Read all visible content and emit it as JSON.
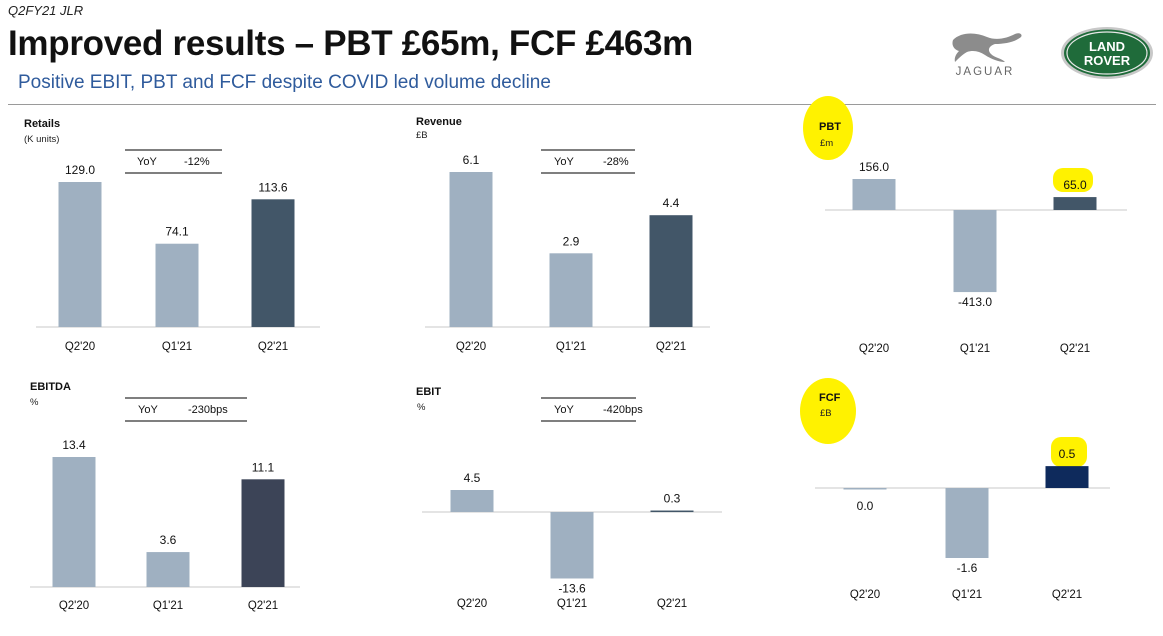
{
  "header": {
    "doc_tag": "Q2FY21 JLR",
    "title": "Improved results – PBT £65m, FCF £463m",
    "subtitle": "Positive EBIT, PBT and FCF despite COVID led volume decline",
    "jaguar_logo_text": "JAGUAR",
    "landrover_logo_text": [
      "LAND",
      "ROVER"
    ]
  },
  "colors": {
    "bar_light": "#9fb0c1",
    "bar_dark": "#425668",
    "bar_dark_ebitda": "#3c4457",
    "bar_navy": "#0e2a5c",
    "highlight": "#fff200",
    "subtitle": "#2f5b9c"
  },
  "chart_data": [
    {
      "id": "retails",
      "type": "bar",
      "title": "Retails",
      "unit": "(K units)",
      "categories": [
        "Q2'20",
        "Q1'21",
        "Q2'21"
      ],
      "values": [
        129.0,
        74.1,
        113.6
      ],
      "labels": [
        "129.0",
        "74.1",
        "113.6"
      ],
      "yoy": {
        "label": "YoY",
        "value": "-12%"
      },
      "bar_colors": [
        "#9fb0c1",
        "#9fb0c1",
        "#425668"
      ],
      "ylim": [
        0,
        129
      ]
    },
    {
      "id": "revenue",
      "type": "bar",
      "title": "Revenue",
      "unit": "£B",
      "categories": [
        "Q2'20",
        "Q1'21",
        "Q2'21"
      ],
      "values": [
        6.1,
        2.9,
        4.4
      ],
      "labels": [
        "6.1",
        "2.9",
        "4.4"
      ],
      "yoy": {
        "label": "YoY",
        "value": "-28%"
      },
      "bar_colors": [
        "#9fb0c1",
        "#9fb0c1",
        "#425668"
      ],
      "ylim": [
        0,
        6.1
      ]
    },
    {
      "id": "pbt",
      "type": "bar",
      "title": "PBT",
      "unit": "£m",
      "categories": [
        "Q2'20",
        "Q1'21",
        "Q2'21"
      ],
      "values": [
        156.0,
        -413.0,
        65.0
      ],
      "labels": [
        "156.0",
        "-413.0",
        "65.0"
      ],
      "bar_colors": [
        "#9fb0c1",
        "#9fb0c1",
        "#425668"
      ],
      "ylim": [
        -413,
        156
      ],
      "highlighted_labels": [
        2
      ]
    },
    {
      "id": "ebitda",
      "type": "bar",
      "title": "EBITDA",
      "unit": "%",
      "categories": [
        "Q2'20",
        "Q1'21",
        "Q2'21"
      ],
      "values": [
        13.4,
        3.6,
        11.1
      ],
      "labels": [
        "13.4",
        "3.6",
        "11.1"
      ],
      "yoy": {
        "label": "YoY",
        "value": "-230bps"
      },
      "bar_colors": [
        "#9fb0c1",
        "#9fb0c1",
        "#3c4457"
      ],
      "ylim": [
        0,
        13.4
      ]
    },
    {
      "id": "ebit",
      "type": "bar",
      "title": "EBIT",
      "unit": "%",
      "categories": [
        "Q2'20",
        "Q1'21",
        "Q2'21"
      ],
      "values": [
        4.5,
        -13.6,
        0.3
      ],
      "labels": [
        "4.5",
        "-13.6",
        "0.3"
      ],
      "yoy": {
        "label": "YoY",
        "value": "-420bps"
      },
      "bar_colors": [
        "#9fb0c1",
        "#9fb0c1",
        "#425668"
      ],
      "ylim": [
        -13.6,
        4.5
      ]
    },
    {
      "id": "fcf",
      "type": "bar",
      "title": "FCF",
      "unit": "£B",
      "categories": [
        "Q2'20",
        "Q1'21",
        "Q2'21"
      ],
      "values": [
        0.0,
        -1.6,
        0.5
      ],
      "labels": [
        "0.0",
        "-1.6",
        "0.5"
      ],
      "bar_colors": [
        "#9fb0c1",
        "#9fb0c1",
        "#0e2a5c"
      ],
      "ylim": [
        -1.6,
        0.5
      ],
      "highlighted_labels": [
        2
      ]
    }
  ]
}
